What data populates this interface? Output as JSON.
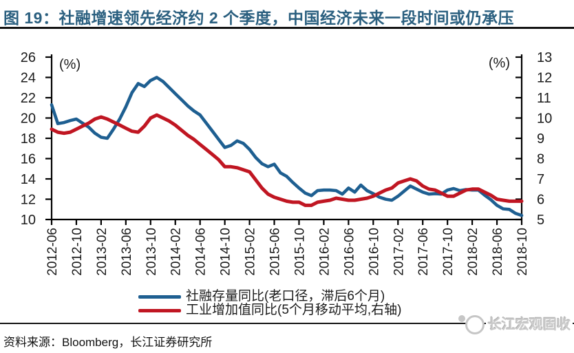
{
  "title": "图 19：社融增速领先经济约 2 个季度，中国经济未来一段时间或仍承压",
  "source_note": "资料来源：Bloomberg，长江证券研究所",
  "watermark": "长江宏观固收",
  "colors": {
    "title": "#2a5f7f",
    "tsf_line": "#1e5f91",
    "industrial_line": "#c01622",
    "axis": "#000000",
    "watermark_gray": "#c9c9c9"
  },
  "chart_data": {
    "type": "line",
    "title": "",
    "grid": false,
    "legend_position": "bottom",
    "left_axis": {
      "label": "(%)",
      "min": 10,
      "max": 26,
      "ticks": [
        26,
        24,
        22,
        20,
        18,
        16,
        14,
        12,
        10
      ]
    },
    "right_axis": {
      "label": "(%)",
      "min": 5,
      "max": 13,
      "ticks": [
        13,
        12,
        11,
        10,
        9,
        8,
        7,
        6,
        5
      ]
    },
    "x_tick_labels": [
      "2012-06",
      "2012-10",
      "2013-02",
      "2013-06",
      "2013-10",
      "2014-02",
      "2014-06",
      "2014-10",
      "2015-02",
      "2015-06",
      "2015-10",
      "2016-02",
      "2016-06",
      "2016-10",
      "2017-02",
      "2017-06",
      "2017-10",
      "2018-02",
      "2018-06",
      "2018-10"
    ],
    "months": [
      "2012-06",
      "2012-07",
      "2012-08",
      "2012-09",
      "2012-10",
      "2012-11",
      "2012-12",
      "2013-01",
      "2013-02",
      "2013-03",
      "2013-04",
      "2013-05",
      "2013-06",
      "2013-07",
      "2013-08",
      "2013-09",
      "2013-10",
      "2013-11",
      "2013-12",
      "2014-01",
      "2014-02",
      "2014-03",
      "2014-04",
      "2014-05",
      "2014-06",
      "2014-07",
      "2014-08",
      "2014-09",
      "2014-10",
      "2014-11",
      "2014-12",
      "2015-01",
      "2015-02",
      "2015-03",
      "2015-04",
      "2015-05",
      "2015-06",
      "2015-07",
      "2015-08",
      "2015-09",
      "2015-10",
      "2015-11",
      "2015-12",
      "2016-01",
      "2016-02",
      "2016-03",
      "2016-04",
      "2016-05",
      "2016-06",
      "2016-07",
      "2016-08",
      "2016-09",
      "2016-10",
      "2016-11",
      "2016-12",
      "2017-01",
      "2017-02",
      "2017-03",
      "2017-04",
      "2017-05",
      "2017-06",
      "2017-07",
      "2017-08",
      "2017-09",
      "2017-10",
      "2017-11",
      "2017-12",
      "2018-01",
      "2018-02",
      "2018-03",
      "2018-04",
      "2018-05",
      "2018-06",
      "2018-07",
      "2018-08",
      "2018-09",
      "2018-10"
    ],
    "series": [
      {
        "name": "社融存量同比(老口径，滞后6个月)",
        "axis": "left",
        "color": "#1e5f91",
        "values": [
          21.3,
          19.45,
          19.55,
          19.75,
          19.9,
          19.5,
          19.1,
          18.5,
          18.1,
          18.0,
          18.9,
          19.9,
          21.1,
          22.5,
          23.4,
          23.1,
          23.7,
          24.0,
          23.6,
          23.0,
          22.4,
          21.8,
          21.2,
          20.7,
          20.3,
          19.5,
          18.7,
          17.9,
          17.1,
          17.3,
          17.75,
          17.5,
          16.9,
          16.1,
          15.5,
          15.2,
          15.45,
          14.6,
          14.25,
          13.65,
          13.1,
          12.6,
          12.35,
          12.85,
          12.9,
          12.9,
          12.85,
          12.5,
          13.1,
          12.7,
          13.4,
          12.85,
          12.55,
          12.2,
          12.0,
          11.9,
          12.3,
          12.8,
          13.3,
          13.0,
          12.7,
          12.5,
          12.55,
          12.5,
          12.9,
          13.05,
          12.85,
          12.95,
          12.9,
          12.9,
          12.4,
          11.95,
          11.4,
          11.05,
          11.0,
          10.6,
          10.4
        ]
      },
      {
        "name": "工业增加值同比(5个月移动平均,右轴)",
        "axis": "right",
        "color": "#c01622",
        "values": [
          9.45,
          9.3,
          9.25,
          9.3,
          9.45,
          9.6,
          9.75,
          9.95,
          10.05,
          9.95,
          9.8,
          9.65,
          9.5,
          9.35,
          9.3,
          9.6,
          10.0,
          10.15,
          10.0,
          9.85,
          9.65,
          9.4,
          9.15,
          8.95,
          8.7,
          8.45,
          8.2,
          7.95,
          7.6,
          7.6,
          7.55,
          7.45,
          7.35,
          6.95,
          6.55,
          6.25,
          6.1,
          6.0,
          5.9,
          5.85,
          5.85,
          5.7,
          5.7,
          5.85,
          5.9,
          5.95,
          6.05,
          6.0,
          5.95,
          5.95,
          6.0,
          6.05,
          6.15,
          6.3,
          6.45,
          6.55,
          6.8,
          6.9,
          7.0,
          6.9,
          6.65,
          6.5,
          6.45,
          6.3,
          6.15,
          6.15,
          6.3,
          6.45,
          6.5,
          6.5,
          6.35,
          6.2,
          6.0,
          5.95,
          5.9,
          5.9,
          5.9
        ]
      }
    ]
  }
}
